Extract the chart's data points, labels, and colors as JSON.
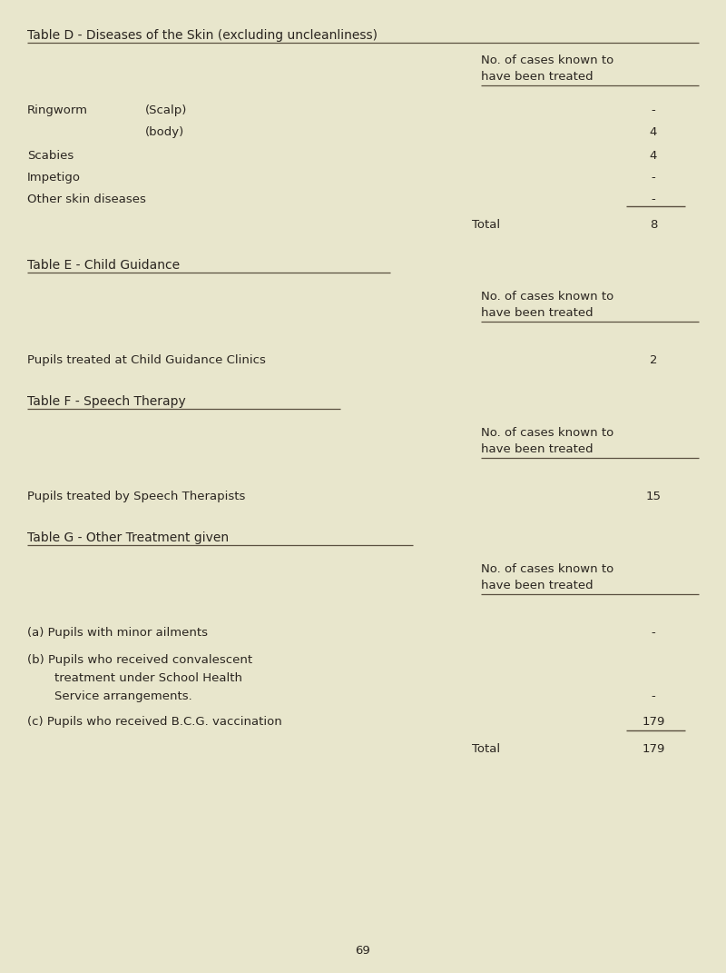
{
  "bg_color": "#e8e6cc",
  "text_color": "#2a2520",
  "font_family": "Courier New",
  "page_number": "69",
  "table_d": {
    "title": "Table D - Diseases of the Skin (excluding uncleanliness)",
    "header_line1": "No. of cases known to",
    "header_line2": "have been treated"
  },
  "table_e": {
    "title": "Table E - Child Guidance",
    "header_line1": "No. of cases known to",
    "header_line2": "have been treated"
  },
  "table_f": {
    "title": "Table F - Speech Therapy",
    "header_line1": "No. of cases known to",
    "header_line2": "have been treated"
  },
  "table_g": {
    "title": "Table G - Other Treatment given",
    "header_line1": "No. of cases known to",
    "header_line2": "have been treated"
  },
  "title_underline_color": "#5a5040",
  "header_underline_color": "#5a5040"
}
